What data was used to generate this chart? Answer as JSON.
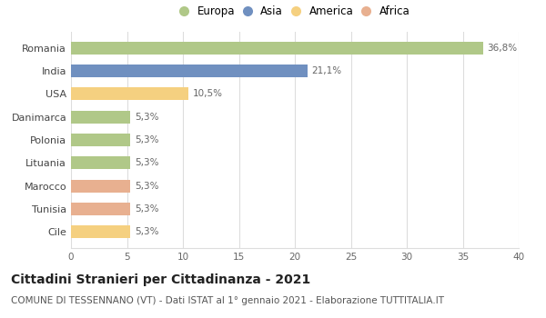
{
  "categories": [
    "Cile",
    "Tunisia",
    "Marocco",
    "Lituania",
    "Polonia",
    "Danimarca",
    "USA",
    "India",
    "Romania"
  ],
  "values": [
    5.3,
    5.3,
    5.3,
    5.3,
    5.3,
    5.3,
    10.5,
    21.1,
    36.8
  ],
  "labels": [
    "5,3%",
    "5,3%",
    "5,3%",
    "5,3%",
    "5,3%",
    "5,3%",
    "10,5%",
    "21,1%",
    "36,8%"
  ],
  "colors": [
    "#f5d080",
    "#e8b090",
    "#e8b090",
    "#b0c888",
    "#b0c888",
    "#b0c888",
    "#f5d080",
    "#7090c0",
    "#b0c888"
  ],
  "legend_labels": [
    "Europa",
    "Asia",
    "America",
    "Africa"
  ],
  "legend_colors": [
    "#b0c888",
    "#7090c0",
    "#f5d080",
    "#e8b090"
  ],
  "xlim": [
    0,
    40
  ],
  "xticks": [
    0,
    5,
    10,
    15,
    20,
    25,
    30,
    35,
    40
  ],
  "title": "Cittadini Stranieri per Cittadinanza - 2021",
  "subtitle": "COMUNE DI TESSENNANO (VT) - Dati ISTAT al 1° gennaio 2021 - Elaborazione TUTTITALIA.IT",
  "title_fontsize": 10,
  "subtitle_fontsize": 7.5,
  "background_color": "#ffffff",
  "grid_color": "#dddddd",
  "bar_height": 0.55
}
